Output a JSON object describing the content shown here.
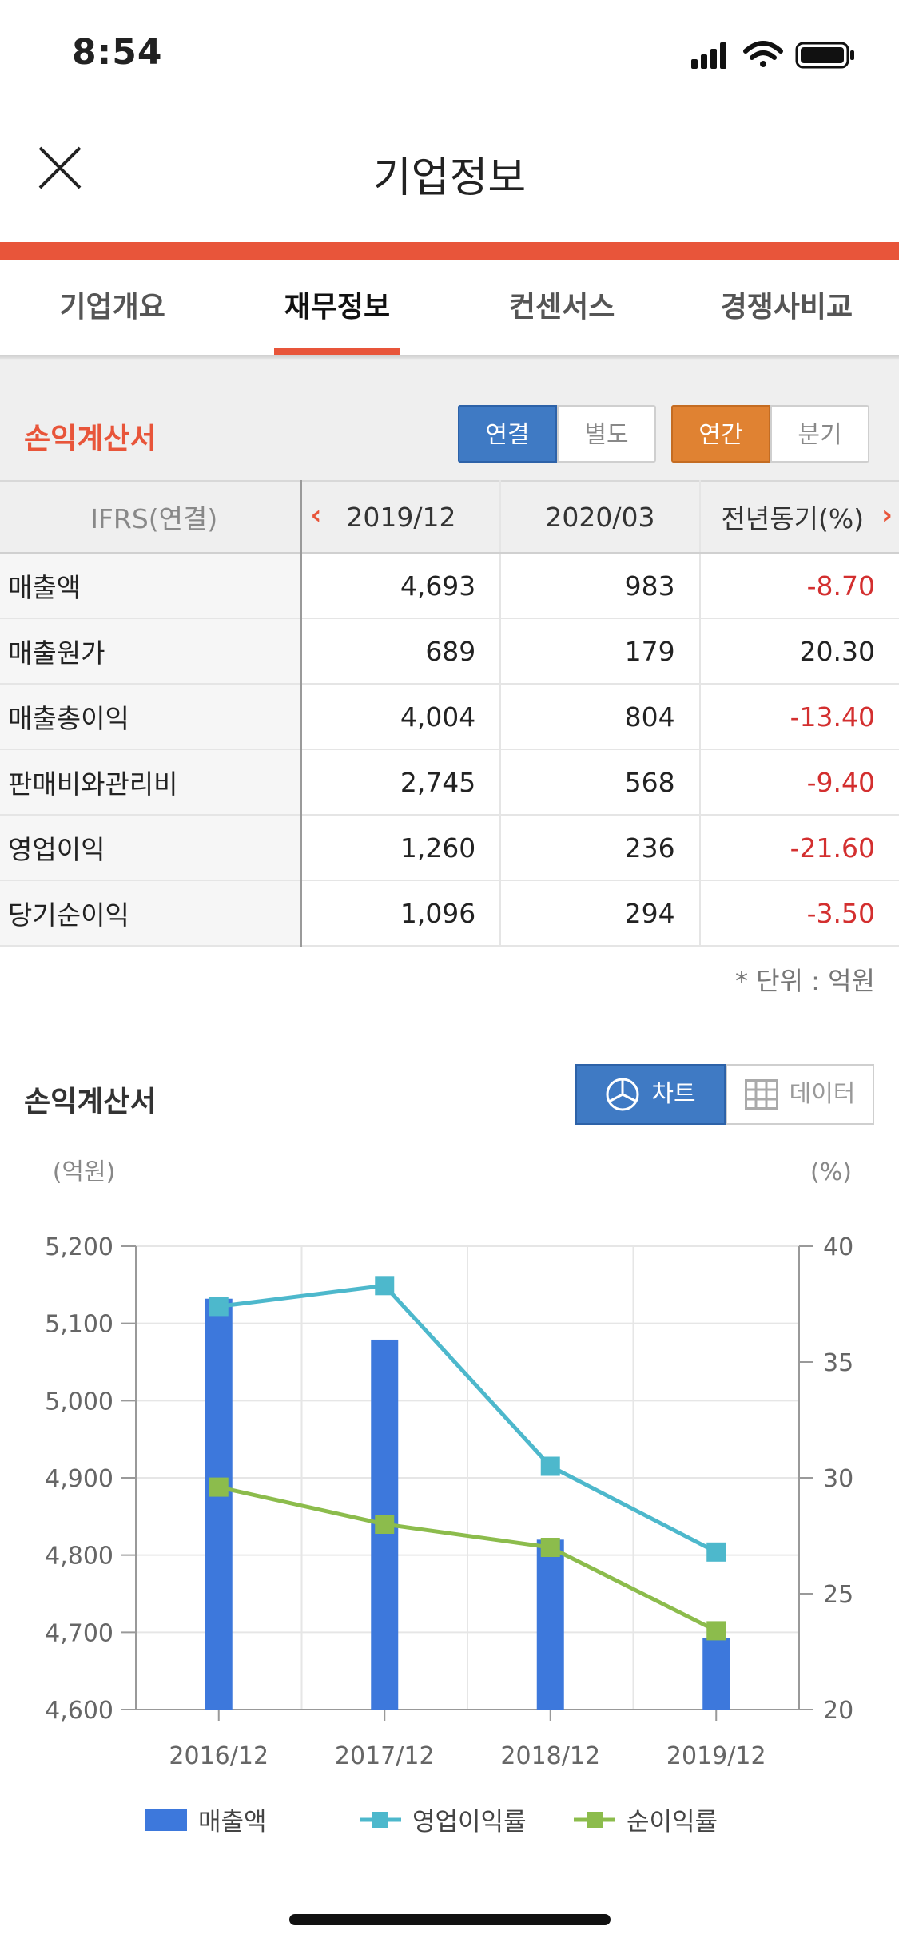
{
  "status_bar": {
    "time": "8:54"
  },
  "header": {
    "title": "기업정보"
  },
  "tabs": [
    {
      "label": "기업개요",
      "active": false
    },
    {
      "label": "재무정보",
      "active": true
    },
    {
      "label": "컨센서스",
      "active": false
    },
    {
      "label": "경쟁사비교",
      "active": false
    }
  ],
  "income_section": {
    "title": "손익계산서",
    "consolidation_toggle": [
      "연결",
      "별도"
    ],
    "period_toggle": [
      "연간",
      "분기"
    ]
  },
  "table": {
    "header": {
      "label": "IFRS(연결)",
      "cols": [
        "2019/12",
        "2020/03",
        "전년동기(%)"
      ]
    },
    "rows": [
      {
        "label": "매출액",
        "v1": "4,693",
        "v2": "983",
        "v3": "-8.70"
      },
      {
        "label": "매출원가",
        "v1": "689",
        "v2": "179",
        "v3": "20.30"
      },
      {
        "label": "매출총이익",
        "v1": "4,004",
        "v2": "804",
        "v3": "-13.40"
      },
      {
        "label": "판매비와관리비",
        "v1": "2,745",
        "v2": "568",
        "v3": "-9.40"
      },
      {
        "label": "영업이익",
        "v1": "1,260",
        "v2": "236",
        "v3": "-21.60"
      },
      {
        "label": "당기순이익",
        "v1": "1,096",
        "v2": "294",
        "v3": "-3.50"
      }
    ],
    "unit": "* 단위 : 억원"
  },
  "chart_section": {
    "title": "손익계산서",
    "view_toggle": {
      "chart": "차트",
      "data": "데이터"
    }
  },
  "colors": {
    "accent": "#e8553a",
    "bar": "#3d78dc",
    "op_line": "#4db8cc",
    "net_line": "#8cbc4c",
    "negative": "#d32f2f"
  },
  "chart_data": {
    "type": "bar",
    "categories": [
      "2016/12",
      "2017/12",
      "2018/12",
      "2019/12"
    ],
    "left_unit": "(억원)",
    "right_unit": "(%)",
    "left_ylim": [
      4600,
      5200
    ],
    "left_ticks": [
      "4,600",
      "4,700",
      "4,800",
      "4,900",
      "5,000",
      "5,100",
      "5,200"
    ],
    "right_ylim": [
      20,
      40
    ],
    "right_ticks": [
      "20",
      "25",
      "30",
      "35",
      "40"
    ],
    "grid": true,
    "legend_position": "bottom",
    "series": [
      {
        "name": "매출액",
        "type": "bar",
        "axis": "left",
        "values": [
          5132,
          5079,
          4820,
          4693
        ]
      },
      {
        "name": "영업이익률",
        "type": "line",
        "axis": "right",
        "values": [
          37.4,
          38.3,
          30.5,
          26.8
        ]
      },
      {
        "name": "순이익률",
        "type": "line",
        "axis": "right",
        "values": [
          29.6,
          28.0,
          27.0,
          23.4
        ]
      }
    ]
  }
}
